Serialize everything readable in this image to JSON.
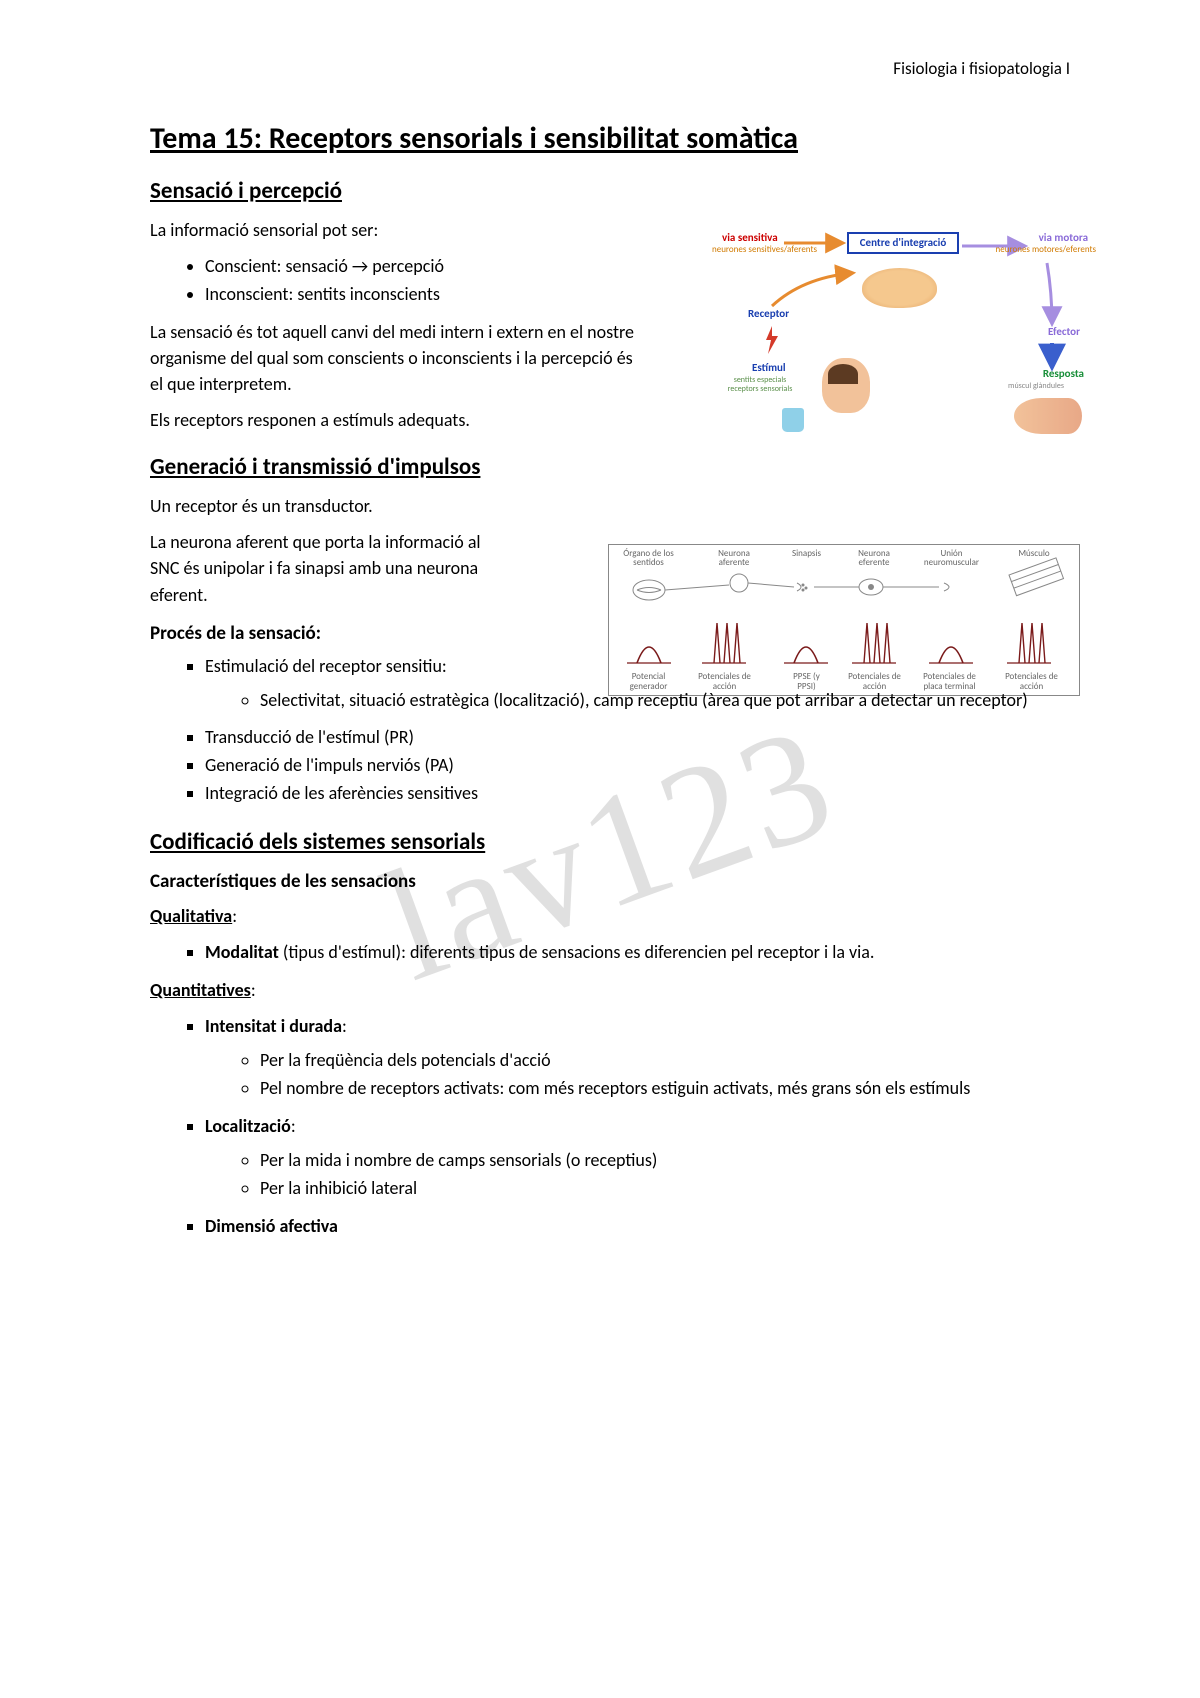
{
  "header": {
    "course": "Fisiologia i fisiopatologia I"
  },
  "title": "Tema 15: Receptors sensorials i sensibilitat somàtica",
  "watermark": "lav123",
  "s1": {
    "heading": "Sensació i percepció",
    "intro": "La informació sensorial pot ser:",
    "bullets": [
      "Conscient: sensació → percepció",
      "Inconscient: sentits inconscients"
    ],
    "para2": "La sensació és tot aquell canvi del medi intern i extern en el nostre organisme del qual som conscients o inconscients i la percepció és el que interpretem.",
    "para3": "Els receptors responen a estímuls adequats."
  },
  "s2": {
    "heading": "Generació i transmissió d'impulsos",
    "p1": "Un receptor és un transductor.",
    "p2": "La neurona aferent que porta la informació al SNC és unipolar i fa sinapsi amb una neurona eferent.",
    "h3": "Procés de la sensació:",
    "bullets": {
      "b1": "Estimulació del receptor sensitiu:",
      "b1sub": "Selectivitat, situació estratègica (localització), camp receptiu (àrea que pot arribar a detectar un receptor)",
      "b2": "Transducció de l'estímul (PR)",
      "b3": "Generació de l'impuls nerviós (PA)",
      "b4": "Integració de les aferències sensitives"
    }
  },
  "s3": {
    "heading": "Codificació dels sistemes sensorials",
    "h3": "Característiques de les sensacions",
    "qual_label": "Qualitativa",
    "qual_b1_bold": "Modalitat",
    "qual_b1_rest": " (tipus d'estímul): diferents tipus de sensacions es diferencien pel receptor i la via.",
    "quant_label": "Quantitatives",
    "quant": {
      "b1": "Intensitat i durada",
      "b1s1": "Per la freqüència dels potencials d'acció",
      "b1s2": "Pel nombre de receptors activats: com més receptors estiguin activats, més grans són els estímuls",
      "b2": "Localització",
      "b2s1": "Per la mida i nombre de camps sensorials (o receptius)",
      "b2s2": "Per la inhibició lateral",
      "b3": "Dimensió afectiva"
    }
  },
  "diag1": {
    "via_sensitiva": "via sensitiva",
    "via_sens_sub": "neurones sensitives/aferents",
    "centre": "Centre d'integració",
    "via_motora": "via motora",
    "via_mot_sub": "neurones motores/eferents",
    "receptor": "Receptor",
    "efector": "Efector",
    "estimul": "Estímul",
    "est_sub": "sentits especials receptors sensorials",
    "resposta": "Resposta",
    "resposta_sub": "múscul glàndules",
    "colors": {
      "sens": "#cc0000",
      "centre": "#1a3fb0",
      "motor": "#8a6bd8",
      "receptor": "#1a3fb0",
      "efector": "#8a6bd8",
      "estimul": "#1a3fb0",
      "resposta": "#1a8f3a",
      "arrow_orange": "#e78b2f",
      "arrow_purple": "#a68ee0",
      "arrow_blue": "#3a5fcd"
    }
  },
  "diag2": {
    "top": [
      "Órgano de los sentidos",
      "Neurona aferente",
      "Sinapsis",
      "Neurona eferente",
      "Unión neuromuscular",
      "Músculo"
    ],
    "bottom": [
      "Potencial generador",
      "Potenciales de acción",
      "PPSE (y PPSI)",
      "Potenciales de acción",
      "Potenciales de placa terminal",
      "Potenciales de acción"
    ],
    "top_x": [
      30,
      118,
      192,
      258,
      335,
      415
    ],
    "bot_x": [
      30,
      108,
      192,
      258,
      335,
      415
    ],
    "spike_color": "#7a1a1a",
    "line_color": "#777"
  }
}
